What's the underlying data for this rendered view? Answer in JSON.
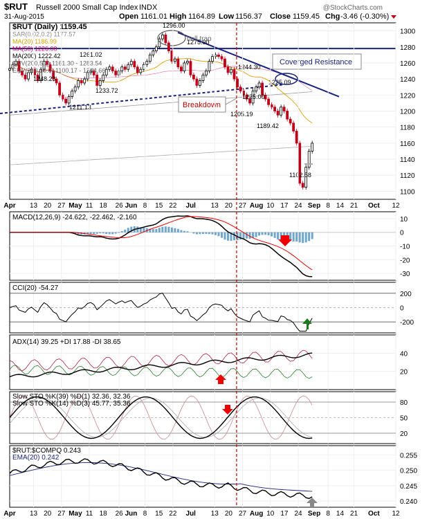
{
  "header": {
    "symbol": "$RUT",
    "name": "Russell 2000 Small Cap Index",
    "exchange": "INDX",
    "date": "31-Aug-2015",
    "open_label": "Open",
    "open": "1161.01",
    "high_label": "High",
    "high": "1164.89",
    "low_label": "Low",
    "low": "1156.37",
    "close_label": "Close",
    "close": "1159.45",
    "chg_label": "Chg",
    "chg": "-3.46 (-0.30%)",
    "watermark": "@StockCharts.com"
  },
  "price_legend": [
    {
      "text": "$RUT (Daily) 1159.45",
      "color": "#000000"
    },
    {
      "text": "SAR(0.02,0.2) 1177.57",
      "color": "#888888"
    },
    {
      "text": "MA(20) 1186.99",
      "color": "#d8a000"
    },
    {
      "text": "MA(50) 1226.00",
      "color": "#cc0066"
    },
    {
      "text": "MA(200) 1222.42",
      "color": "#000000"
    },
    {
      "text": "ENV(200,5.0) 1161.30 - 1283.54",
      "color": "#666666"
    },
    {
      "text": "ENV(200,10.0) 1100.17 - 1344.66",
      "color": "#666666"
    }
  ],
  "panels": [
    {
      "id": "price",
      "legend": "",
      "ticks": [
        "1300",
        "1280",
        "1260",
        "1240",
        "1220",
        "1200",
        "1180",
        "1160",
        "1140",
        "1120",
        "1100"
      ]
    },
    {
      "id": "macd",
      "legend": "MACD(12,26,9) -24.622, -22.462, -2.160",
      "ticks": [
        "10",
        "0",
        "-10",
        "-20",
        "-30"
      ]
    },
    {
      "id": "cci",
      "legend": "CCI(20) -54.27",
      "ticks": [
        "200",
        "0",
        "-200"
      ]
    },
    {
      "id": "adx",
      "legend": "ADX(14) 39.25 +DI 17.88 -DI 38.65",
      "ticks": [
        "40",
        "20"
      ]
    },
    {
      "id": "sto",
      "legend": "Slow STO %K(39) %D(1) 32.36, 32.36",
      "legend2": "Slow STO %K(14) %D(3) 45.77, 35.36",
      "ticks": [
        "80",
        "50",
        "20"
      ]
    },
    {
      "id": "ratio",
      "legend": "$RUT:$COMPQ 0.243",
      "legend2": "EMA(20) 0.242",
      "ticks": [
        "0.255",
        "0.250",
        "0.245",
        "0.240"
      ]
    }
  ],
  "x_axis": {
    "labels": [
      "Apr",
      "13",
      "20",
      "27",
      "May",
      "11",
      "18",
      "26",
      "Jun",
      "8",
      "15",
      "22",
      "Jul",
      "13",
      "20",
      "27",
      "Aug",
      "10",
      "17",
      "24",
      "Sep",
      "8",
      "14",
      "21",
      "Oct",
      "12"
    ],
    "bold": [
      "Apr",
      "May",
      "Jun",
      "Jul",
      "Aug",
      "Sep",
      "Oct"
    ]
  },
  "annotations": {
    "price_labels": [
      "1296.00",
      "1275.90",
      "1261.02",
      "1248.23",
      "1233.72",
      "1211.13",
      "1244.30",
      "1225.09",
      "1225.00",
      "1205.19",
      "1189.42",
      "1102.58"
    ],
    "bull_trap": "bull trap",
    "breakdown": "Breakdown",
    "converged": "Coverged Resistance"
  },
  "chart_data": {
    "type": "candlestick-with-indicators",
    "x_range": [
      "2015-04-01",
      "2015-10-12"
    ],
    "price": {
      "ylim": [
        1090,
        1310
      ],
      "close": [
        1253,
        1258,
        1262,
        1250,
        1245,
        1240,
        1248,
        1252,
        1245,
        1238,
        1252,
        1262,
        1258,
        1250,
        1240,
        1235,
        1220,
        1215,
        1210,
        1218,
        1225,
        1230,
        1238,
        1235,
        1240,
        1248,
        1250,
        1245,
        1232,
        1238,
        1245,
        1252,
        1255,
        1250,
        1245,
        1250,
        1255,
        1252,
        1258,
        1262,
        1255,
        1248,
        1252,
        1258,
        1262,
        1270,
        1275,
        1280,
        1290,
        1295,
        1285,
        1275,
        1262,
        1265,
        1255,
        1250,
        1260,
        1262,
        1245,
        1240,
        1232,
        1238,
        1245,
        1250,
        1262,
        1268,
        1270,
        1268,
        1265,
        1255,
        1248,
        1252,
        1240,
        1230,
        1225,
        1220,
        1215,
        1210,
        1225,
        1230,
        1235,
        1220,
        1215,
        1208,
        1205,
        1200,
        1195,
        1205,
        1200,
        1190,
        1185,
        1175,
        1160,
        1110,
        1105,
        1130,
        1150,
        1160
      ],
      "sar": 1177.57,
      "ma20": 1186.99,
      "ma50": 1226.0,
      "ma200": 1222.42,
      "env5": [
        1161.3,
        1283.54
      ],
      "env10": [
        1100.17,
        1344.66
      ],
      "horizontal_line": 1278
    },
    "macd": {
      "ylim": [
        -35,
        15
      ],
      "macd": -24.622,
      "signal": -22.462,
      "histogram": -2.16
    },
    "cci": {
      "ylim": [
        -300,
        300
      ],
      "value": -54.27
    },
    "adx": {
      "ylim": [
        0,
        60
      ],
      "adx": 39.25,
      "plus_di": 17.88,
      "minus_di": 38.65
    },
    "sto39": {
      "ylim": [
        0,
        100
      ],
      "k": 32.36,
      "d": 32.36
    },
    "sto14": {
      "ylim": [
        0,
        100
      ],
      "k": 45.77,
      "d": 35.36
    },
    "ratio": {
      "ylim": [
        0.238,
        0.258
      ],
      "value": 0.243,
      "ema20": 0.242
    }
  }
}
